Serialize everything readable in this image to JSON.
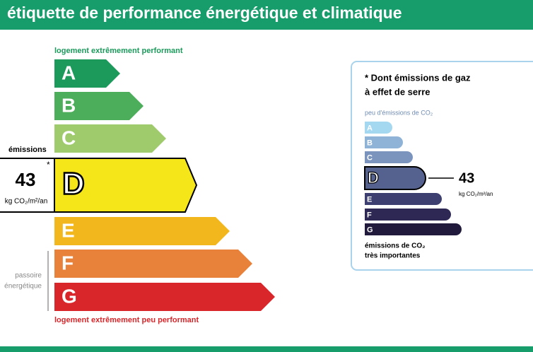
{
  "header": {
    "title": "étiquette de performance énergétique et climatique"
  },
  "energy_scale": {
    "top_label": "logement extrêmement performant",
    "bottom_label": "logement extrêmement peu performant",
    "classes": [
      {
        "letter": "A",
        "color": "#1b9a5b"
      },
      {
        "letter": "B",
        "color": "#4cad5b"
      },
      {
        "letter": "C",
        "color": "#9fcb6d"
      },
      {
        "letter": "D",
        "color": "#f5e619"
      },
      {
        "letter": "E",
        "color": "#f2b71c"
      },
      {
        "letter": "F",
        "color": "#e8813a"
      },
      {
        "letter": "G",
        "color": "#d9262a"
      }
    ],
    "current": {
      "label": "émissions",
      "value": "43",
      "asterisk": "*",
      "unit": "kg CO₂/m²/an"
    },
    "passoire": [
      "passoire",
      "énergétique"
    ]
  },
  "ghg_box": {
    "title": [
      "* Dont émissions de gaz",
      "à effet de serre"
    ],
    "top_label": "peu d'émissions de CO₂",
    "bottom_label": [
      "émissions de CO₂",
      "très importantes"
    ],
    "classes": [
      {
        "letter": "A",
        "color": "#a4d8f0"
      },
      {
        "letter": "B",
        "color": "#8fb3d6"
      },
      {
        "letter": "C",
        "color": "#7b94bd"
      },
      {
        "letter": "D",
        "color": "#55628f"
      },
      {
        "letter": "E",
        "color": "#3c3f70"
      },
      {
        "letter": "F",
        "color": "#2e2855"
      },
      {
        "letter": "G",
        "color": "#221a3c"
      }
    ],
    "current": {
      "value": "43",
      "unit": "kg CO₂/m²/an"
    }
  }
}
